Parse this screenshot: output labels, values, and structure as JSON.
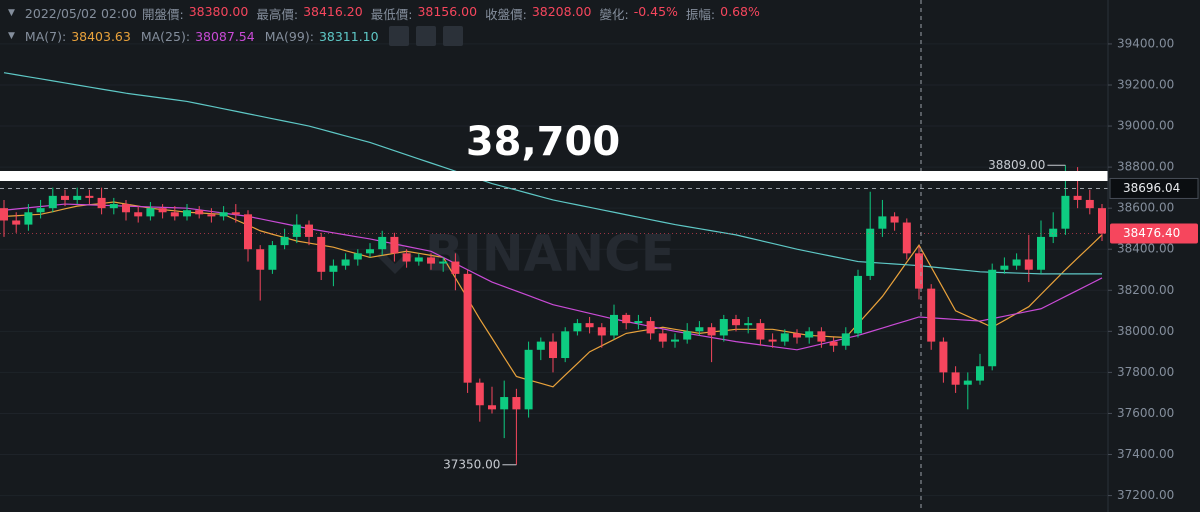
{
  "chart_data": {
    "type": "candlestick",
    "info": {
      "date": "2022/05/02 02:00",
      "fields": [
        {
          "label": "開盤價:",
          "value": "38380.00"
        },
        {
          "label": "最高價:",
          "value": "38416.20"
        },
        {
          "label": "最低價:",
          "value": "38156.00"
        },
        {
          "label": "收盤價:",
          "value": "38208.00"
        },
        {
          "label": "變化:",
          "value": "-0.45%"
        },
        {
          "label": "振幅:",
          "value": "0.68%"
        }
      ],
      "value_color": "#f6465d"
    },
    "annotation": "38,700",
    "watermark": "BINANCE",
    "up_color": "#0ecb81",
    "down_color": "#f6465d",
    "open": [
      38600,
      38540,
      38520,
      38580,
      38600,
      38660,
      38640,
      38660,
      38650,
      38600,
      38620,
      38580,
      38560,
      38600,
      38580,
      38560,
      38590,
      38570,
      38560,
      38580,
      38570,
      38400,
      38300,
      38420,
      38460,
      38520,
      38460,
      38290,
      38320,
      38350,
      38380,
      38400,
      38460,
      38380,
      38340,
      38360,
      38330,
      38340,
      38280,
      37750,
      37640,
      37620,
      37680,
      37620,
      37910,
      37950,
      37870,
      38000,
      38040,
      38020,
      37980,
      38080,
      38040,
      38050,
      37990,
      37950,
      37960,
      38000,
      38020,
      37980,
      38060,
      38030,
      38040,
      37960,
      37950,
      37990,
      37970,
      38000,
      37950,
      37930,
      37990,
      38270,
      38500,
      38560,
      38530,
      38380,
      38208,
      37950,
      37800,
      37740,
      37760,
      37830,
      38300,
      38320,
      38350,
      38300,
      38460,
      38500,
      38660,
      38640,
      38600
    ],
    "high": [
      38640,
      38580,
      38620,
      38640,
      38700,
      38690,
      38700,
      38690,
      38700,
      38650,
      38640,
      38610,
      38630,
      38620,
      38610,
      38620,
      38610,
      38600,
      38610,
      38620,
      38590,
      38420,
      38440,
      38500,
      38570,
      38540,
      38480,
      38350,
      38380,
      38400,
      38430,
      38490,
      38480,
      38400,
      38380,
      38380,
      38360,
      38380,
      38300,
      37770,
      37730,
      37760,
      37720,
      37950,
      37970,
      37990,
      38020,
      38060,
      38070,
      38040,
      38130,
      38090,
      38080,
      38070,
      38010,
      37990,
      38040,
      38050,
      38040,
      38080,
      38080,
      38070,
      38060,
      37990,
      38010,
      38010,
      38020,
      38020,
      37970,
      38020,
      38300,
      38680,
      38640,
      38580,
      38550,
      38416.2,
      38230,
      37970,
      37830,
      37800,
      37890,
      38330,
      38360,
      38380,
      38470,
      38540,
      38580,
      38809,
      38800,
      38690,
      38620
    ],
    "low": [
      38460,
      38480,
      38490,
      38550,
      38580,
      38610,
      38620,
      38620,
      38570,
      38570,
      38540,
      38530,
      38540,
      38550,
      38540,
      38540,
      38550,
      38530,
      38540,
      38530,
      38340,
      38150,
      38280,
      38400,
      38430,
      38420,
      38250,
      38220,
      38300,
      38320,
      38360,
      38370,
      38340,
      38310,
      38320,
      38300,
      38290,
      38200,
      37700,
      37560,
      37600,
      37480,
      37350,
      37580,
      37860,
      37800,
      37850,
      37980,
      37990,
      37920,
      37960,
      38010,
      38010,
      37960,
      37920,
      37920,
      37940,
      37980,
      37850,
      37950,
      38000,
      37990,
      37930,
      37920,
      37930,
      37940,
      37940,
      37920,
      37900,
      37910,
      37970,
      38250,
      38460,
      38490,
      38350,
      38156,
      37910,
      37750,
      37700,
      37620,
      37740,
      37810,
      38280,
      38300,
      38240,
      38280,
      38430,
      38470,
      38600,
      38570,
      38440
    ],
    "close": [
      38540,
      38520,
      38580,
      38600,
      38660,
      38640,
      38660,
      38650,
      38600,
      38620,
      38580,
      38560,
      38600,
      38580,
      38560,
      38590,
      38570,
      38560,
      38580,
      38570,
      38400,
      38300,
      38420,
      38460,
      38520,
      38460,
      38290,
      38320,
      38350,
      38380,
      38400,
      38460,
      38380,
      38340,
      38360,
      38330,
      38340,
      38280,
      37750,
      37640,
      37620,
      37680,
      37620,
      37910,
      37950,
      37870,
      38000,
      38040,
      38020,
      37980,
      38080,
      38040,
      38050,
      37990,
      37950,
      37960,
      38000,
      38020,
      37980,
      38060,
      38030,
      38040,
      37960,
      37950,
      37990,
      37970,
      38000,
      37950,
      37930,
      37990,
      38270,
      38500,
      38560,
      38530,
      38380,
      38208,
      37950,
      37800,
      37740,
      37760,
      37830,
      38300,
      38320,
      38350,
      38300,
      38460,
      38500,
      38660,
      38640,
      38600,
      38476.4
    ],
    "max_label": "38809.00",
    "min_label": "37350.00",
    "series": [
      {
        "name": "MA(7):",
        "last_label": "38403.63",
        "color": "#e9a23b",
        "values": [
          38560,
          38563,
          38567,
          38570,
          38583,
          38597,
          38610,
          38617,
          38623,
          38630,
          38620,
          38610,
          38600,
          38593,
          38587,
          38580,
          38577,
          38573,
          38570,
          38543,
          38517,
          38490,
          38473,
          38457,
          38440,
          38430,
          38420,
          38410,
          38393,
          38377,
          38360,
          38370,
          38380,
          38390,
          38380,
          38370,
          38360,
          38260,
          38160,
          38060,
          37967,
          37873,
          37780,
          37763,
          37747,
          37730,
          37787,
          37843,
          37900,
          37930,
          37960,
          37990,
          38000,
          38010,
          38020,
          38010,
          38000,
          37990,
          37997,
          38003,
          38010,
          38010,
          38010,
          38010,
          38000,
          37990,
          37980,
          37977,
          37973,
          37970,
          38037,
          38103,
          38170,
          38253,
          38337,
          38420,
          38313,
          38207,
          38100,
          38073,
          38047,
          38020,
          38053,
          38087,
          38120,
          38180,
          38240,
          38300,
          38357,
          38413,
          38470
        ]
      },
      {
        "name": "MA(25):",
        "last_label": "38087.54",
        "color": "#c94bd6",
        "values": [
          38590,
          38596,
          38602,
          38608,
          38614,
          38620,
          38618,
          38616,
          38614,
          38612,
          38610,
          38608,
          38606,
          38604,
          38602,
          38600,
          38592,
          38584,
          38576,
          38568,
          38560,
          38548,
          38536,
          38524,
          38512,
          38500,
          38490,
          38480,
          38470,
          38460,
          38450,
          38438,
          38426,
          38414,
          38402,
          38390,
          38360,
          38330,
          38300,
          38270,
          38240,
          38218,
          38196,
          38174,
          38152,
          38130,
          38116,
          38102,
          38088,
          38074,
          38060,
          38048,
          38036,
          38024,
          38012,
          38000,
          37990,
          37980,
          37970,
          37960,
          37950,
          37942,
          37934,
          37926,
          37918,
          37910,
          37924,
          37938,
          37952,
          37966,
          37980,
          37998,
          38016,
          38034,
          38052,
          38070,
          38066,
          38062,
          38058,
          38054,
          38050,
          38062,
          38074,
          38086,
          38098,
          38110,
          38140,
          38170,
          38200,
          38230,
          38260
        ]
      },
      {
        "name": "MA(99):",
        "last_label": "38311.10",
        "color": "#5ec8c6",
        "values": [
          39260,
          39250,
          39240,
          39230,
          39220,
          39210,
          39200,
          39190,
          39180,
          39170,
          39160,
          39152,
          39144,
          39136,
          39128,
          39120,
          39108,
          39096,
          39084,
          39072,
          39060,
          39048,
          39036,
          39024,
          39012,
          39000,
          38984,
          38968,
          38952,
          38936,
          38920,
          38900,
          38880,
          38860,
          38840,
          38820,
          38800,
          38780,
          38760,
          38740,
          38720,
          38704,
          38688,
          38672,
          38656,
          38640,
          38628,
          38616,
          38604,
          38592,
          38580,
          38568,
          38556,
          38544,
          38532,
          38520,
          38510,
          38500,
          38490,
          38480,
          38470,
          38456,
          38442,
          38428,
          38414,
          38400,
          38388,
          38376,
          38364,
          38352,
          38340,
          38336,
          38332,
          38328,
          38324,
          38320,
          38314,
          38308,
          38302,
          38296,
          38290,
          38288,
          38286,
          38284,
          38282,
          38280,
          38280,
          38280,
          38280,
          38280,
          38280
        ]
      }
    ],
    "crosshair_price": {
      "value": 38696.04,
      "label": "38696.04"
    },
    "last_price": {
      "value": 38476.4,
      "label": "38476.40"
    },
    "ylim": [
      37120,
      39614
    ],
    "yticks": [
      {
        "value": 37200,
        "label": "37200.00"
      },
      {
        "value": 37400,
        "label": "37400.00"
      },
      {
        "value": 37600,
        "label": "37600.00"
      },
      {
        "value": 37800,
        "label": "37800.00"
      },
      {
        "value": 38000,
        "label": "38000.00"
      },
      {
        "value": 38200,
        "label": "38200.00"
      },
      {
        "value": 38400,
        "label": "38400.00"
      },
      {
        "value": 38600,
        "label": "38600.00"
      },
      {
        "value": 38800,
        "label": "38800.00"
      },
      {
        "value": 39000,
        "label": "39000.00"
      },
      {
        "value": 39200,
        "label": "39200.00"
      },
      {
        "value": 39400,
        "label": "39400.00"
      }
    ],
    "grid": true
  }
}
